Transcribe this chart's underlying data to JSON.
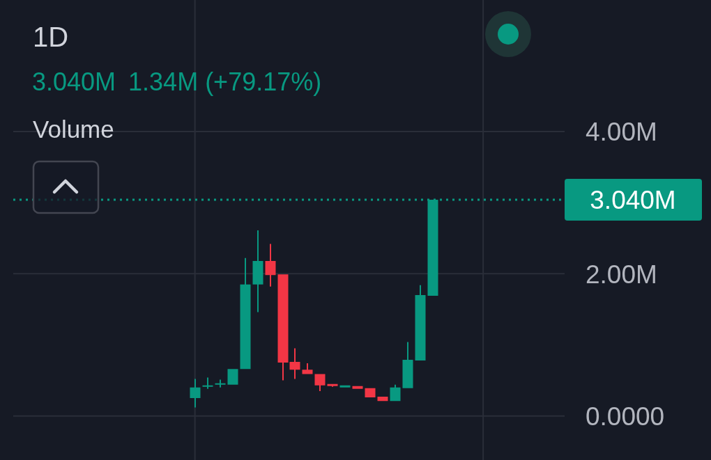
{
  "chart_data": {
    "type": "candlestick",
    "title": "1D",
    "ylabel": "Volume",
    "annotations": [
      "3.040M",
      "1.34M (+79.17%)"
    ],
    "categories": [
      null,
      null,
      null,
      null,
      null,
      null,
      null,
      null,
      null,
      null,
      null,
      null,
      null,
      null,
      null,
      null,
      null,
      null,
      null,
      null,
      null,
      null,
      null,
      null,
      null,
      null,
      null,
      null,
      null,
      null,
      null,
      null,
      null,
      null,
      null,
      null,
      null,
      null,
      null,
      null,
      null,
      null,
      null,
      null
    ],
    "ohlc": [
      null,
      null,
      null,
      null,
      null,
      null,
      null,
      null,
      null,
      null,
      null,
      null,
      null,
      null,
      [
        0.25,
        0.52,
        0.12,
        0.4
      ],
      [
        0.41,
        0.54,
        0.38,
        0.43
      ],
      [
        0.45,
        0.51,
        0.4,
        0.46
      ],
      [
        0.44,
        0.66,
        0.44,
        0.66
      ],
      [
        0.66,
        2.22,
        0.66,
        1.85
      ],
      [
        1.85,
        2.61,
        1.46,
        2.18
      ],
      [
        2.18,
        2.42,
        1.82,
        1.98
      ],
      [
        1.99,
        1.99,
        0.5,
        0.75
      ],
      [
        0.76,
        0.95,
        0.52,
        0.65
      ],
      [
        0.65,
        0.74,
        0.59,
        0.59
      ],
      [
        0.59,
        0.59,
        0.35,
        0.43
      ],
      [
        0.45,
        0.45,
        0.41,
        0.42
      ],
      [
        0.4,
        0.43,
        0.4,
        0.43
      ],
      [
        0.42,
        0.42,
        0.38,
        0.38
      ],
      [
        0.39,
        0.39,
        0.26,
        0.26
      ],
      [
        0.27,
        0.27,
        0.21,
        0.21
      ],
      [
        0.21,
        0.44,
        0.21,
        0.4
      ],
      [
        0.39,
        1.04,
        0.39,
        0.79
      ],
      [
        0.78,
        1.84,
        0.78,
        1.7
      ],
      [
        1.69,
        3.04,
        1.69,
        3.04
      ],
      null,
      null,
      null,
      null,
      null,
      null,
      null,
      null,
      null,
      null
    ],
    "colors": [
      null,
      null,
      null,
      null,
      null,
      null,
      null,
      null,
      null,
      null,
      null,
      null,
      null,
      null,
      "#089981",
      "#089981",
      "#089981",
      "#089981",
      "#089981",
      "#089981",
      "#f23645",
      "#f23645",
      "#f23645",
      "#f23645",
      "#f23645",
      "#f23645",
      "#089981",
      "#f23645",
      "#f23645",
      "#f23645",
      "#089981",
      "#089981",
      "#089981",
      "#089981",
      null,
      null,
      null,
      null,
      null,
      null,
      null,
      null,
      null,
      null
    ],
    "ylim": [
      -0.62,
      5.85
    ],
    "yticks": [
      {
        "value": 0,
        "label": "0.0000"
      },
      {
        "value": 2,
        "label": "2.00M"
      },
      {
        "value": 4,
        "label": "4.00M"
      }
    ],
    "ref_lines": [
      {
        "axis": "y",
        "value": 3.04,
        "label": "3.040M",
        "color": "#089981",
        "line_style": "dotted"
      }
    ],
    "grid": true,
    "tick_labels": "y"
  }
}
